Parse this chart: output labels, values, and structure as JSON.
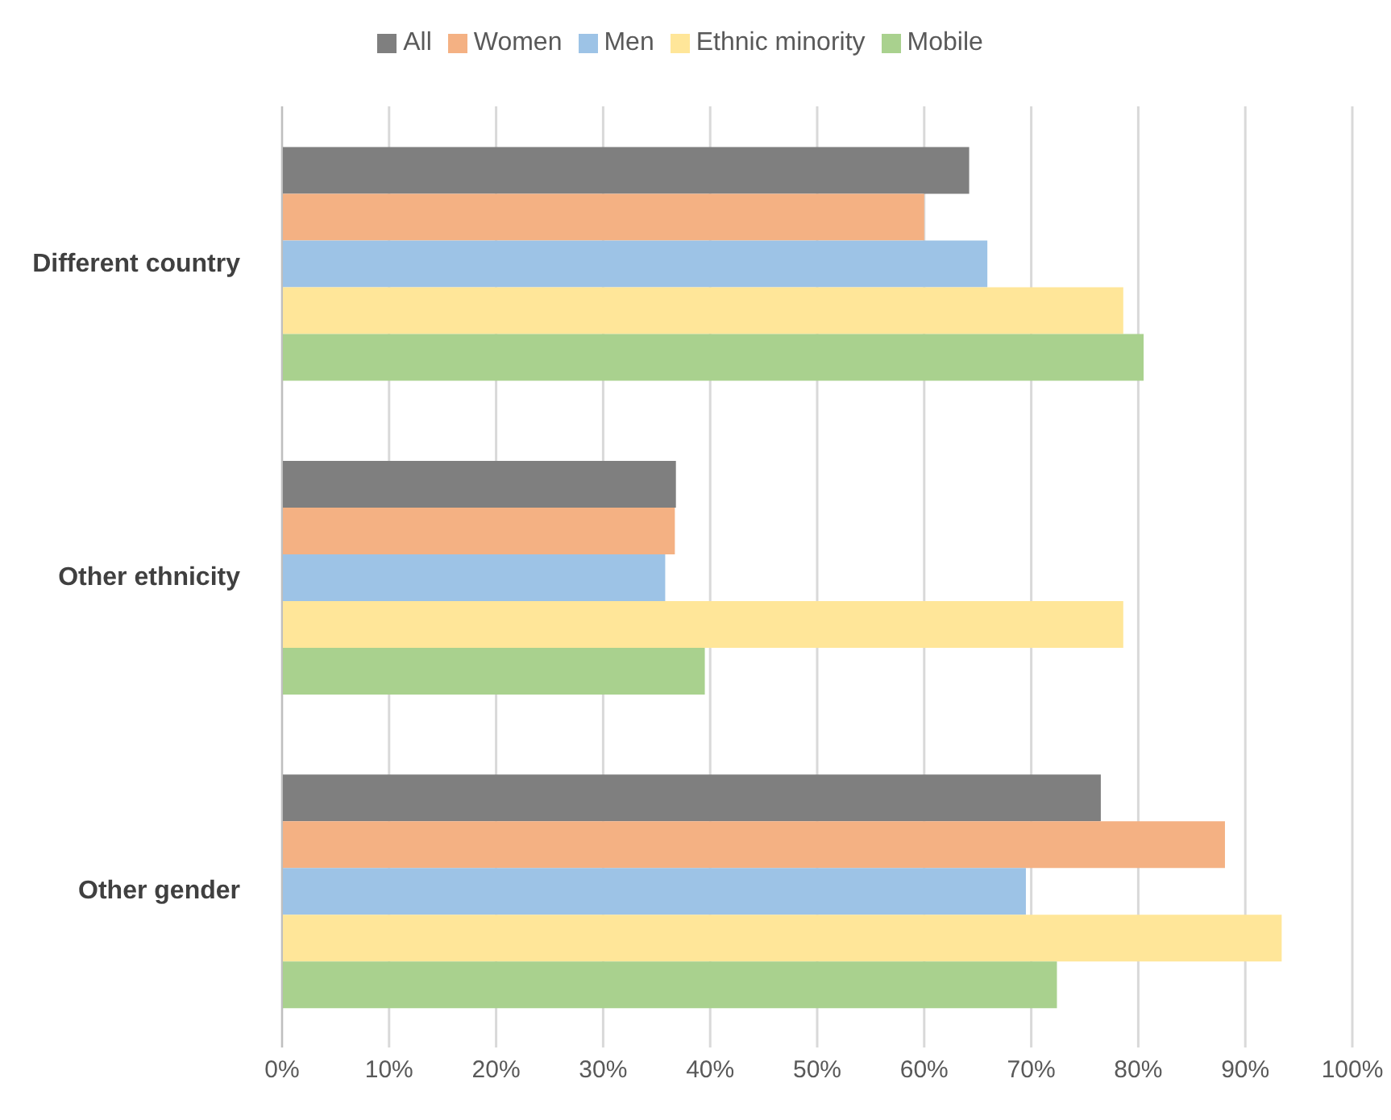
{
  "chart_data": {
    "type": "bar",
    "orientation": "horizontal",
    "categories": [
      "Different country",
      "Other ethnicity",
      "Other gender"
    ],
    "series": [
      {
        "name": "All",
        "color": "#7f7f7f",
        "values": [
          64.2,
          36.8,
          76.5
        ]
      },
      {
        "name": "Women",
        "color": "#f4b183",
        "values": [
          60.0,
          36.7,
          88.1
        ]
      },
      {
        "name": "Men",
        "color": "#9dc3e6",
        "values": [
          65.9,
          35.8,
          69.5
        ]
      },
      {
        "name": "Ethnic minority",
        "color": "#ffe699",
        "values": [
          78.6,
          78.6,
          93.4
        ]
      },
      {
        "name": "Mobile",
        "color": "#a9d18e",
        "values": [
          80.5,
          39.5,
          72.4
        ]
      }
    ],
    "xlim": [
      0,
      100
    ],
    "xticks": [
      {
        "value": 0,
        "label": "0%"
      },
      {
        "value": 10,
        "label": "10%"
      },
      {
        "value": 20,
        "label": "20%"
      },
      {
        "value": 30,
        "label": "30%"
      },
      {
        "value": 40,
        "label": "40%"
      },
      {
        "value": 50,
        "label": "50%"
      },
      {
        "value": 60,
        "label": "60%"
      },
      {
        "value": 70,
        "label": "70%"
      },
      {
        "value": 80,
        "label": "80%"
      },
      {
        "value": 90,
        "label": "90%"
      },
      {
        "value": 100,
        "label": "100%"
      }
    ],
    "grid": "x",
    "legend": "top"
  }
}
